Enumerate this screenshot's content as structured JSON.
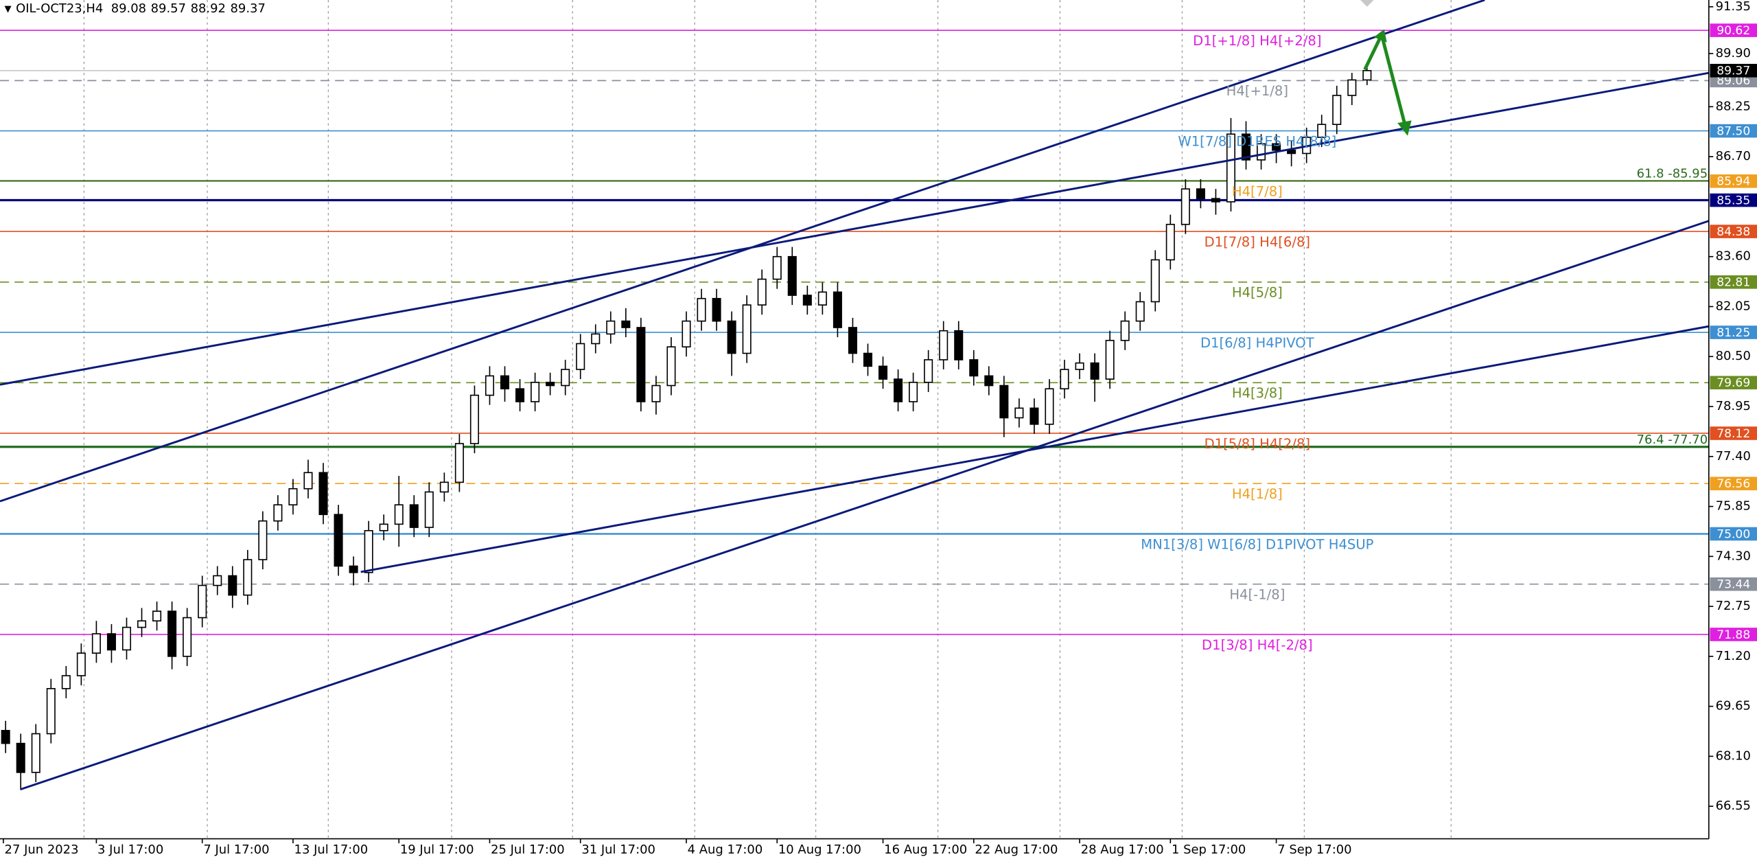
{
  "chart_data": {
    "type": "candlestick",
    "title": "OIL-OCT23,H4",
    "categories": [
      "27 Jun 2023",
      null,
      null,
      null,
      null,
      null,
      "3 Jul 17:00",
      null,
      null,
      null,
      null,
      null,
      null,
      "7 Jul 17:00",
      null,
      null,
      null,
      null,
      null,
      "13 Jul 17:00",
      null,
      null,
      null,
      null,
      null,
      null,
      "19 Jul 17:00",
      null,
      null,
      null,
      null,
      null,
      "25 Jul 17:00",
      null,
      null,
      null,
      null,
      null,
      "31 Jul 17:00",
      null,
      null,
      null,
      null,
      null,
      null,
      "4 Aug 17:00",
      null,
      null,
      null,
      null,
      null,
      "10 Aug 17:00",
      null,
      null,
      null,
      null,
      null,
      null,
      "16 Aug 17:00",
      null,
      null,
      null,
      null,
      null,
      "22 Aug 17:00",
      null,
      null,
      null,
      null,
      null,
      null,
      "28 Aug 17:00",
      null,
      null,
      null,
      null,
      null,
      "1 Sep 17:00",
      null,
      null,
      null,
      null,
      null,
      null,
      "7 Sep 17:00",
      null,
      null,
      null,
      null,
      null,
      null
    ],
    "open": [
      68.9,
      68.5,
      67.6,
      68.8,
      70.2,
      70.6,
      71.3,
      71.9,
      71.4,
      72.1,
      72.3,
      72.6,
      71.2,
      72.4,
      73.4,
      73.7,
      73.1,
      74.2,
      75.4,
      75.9,
      76.4,
      76.9,
      75.6,
      74.0,
      73.8,
      75.1,
      75.3,
      75.9,
      75.2,
      76.3,
      76.6,
      77.8,
      79.3,
      79.9,
      79.5,
      79.1,
      79.7,
      79.6,
      80.1,
      80.9,
      81.2,
      81.6,
      81.4,
      79.1,
      79.6,
      80.8,
      81.6,
      82.3,
      81.6,
      80.6,
      82.1,
      82.9,
      83.6,
      82.4,
      82.1,
      82.5,
      81.4,
      80.6,
      80.2,
      79.8,
      79.1,
      79.7,
      80.4,
      81.3,
      80.4,
      79.9,
      79.6,
      78.6,
      78.9,
      78.4,
      79.5,
      80.1,
      80.3,
      79.8,
      81.0,
      81.6,
      82.2,
      83.5,
      84.6,
      85.7,
      85.4,
      85.3,
      87.4,
      86.6,
      87.1,
      86.9,
      86.8,
      87.3,
      87.7,
      88.6,
      89.08
    ],
    "high": [
      69.2,
      68.8,
      69.1,
      70.5,
      70.9,
      71.6,
      72.3,
      72.2,
      72.4,
      72.7,
      72.9,
      72.9,
      72.7,
      73.7,
      74.0,
      74.0,
      74.5,
      75.7,
      76.2,
      76.7,
      77.3,
      77.2,
      75.9,
      74.3,
      75.4,
      75.6,
      76.8,
      76.2,
      76.6,
      76.9,
      78.1,
      79.6,
      80.2,
      80.2,
      79.8,
      80.0,
      80.0,
      80.4,
      81.2,
      81.5,
      81.9,
      82.0,
      81.7,
      79.9,
      81.1,
      81.9,
      82.6,
      82.6,
      81.9,
      82.4,
      83.2,
      83.9,
      83.9,
      82.7,
      82.8,
      82.8,
      81.7,
      80.9,
      80.5,
      80.1,
      80.0,
      80.7,
      81.6,
      81.6,
      80.7,
      80.2,
      79.9,
      79.2,
      79.2,
      79.8,
      80.4,
      80.6,
      80.6,
      81.3,
      81.9,
      82.5,
      83.8,
      84.9,
      86.0,
      86.0,
      85.7,
      87.9,
      87.8,
      87.4,
      87.4,
      87.2,
      87.6,
      88.0,
      88.9,
      89.3,
      89.57
    ],
    "low": [
      68.2,
      67.1,
      67.3,
      68.5,
      69.9,
      70.3,
      71.0,
      71.0,
      71.1,
      71.8,
      72.0,
      70.8,
      70.9,
      72.1,
      73.1,
      72.7,
      72.8,
      73.9,
      75.1,
      75.6,
      76.1,
      75.3,
      73.7,
      73.4,
      73.5,
      74.8,
      74.6,
      74.9,
      74.9,
      76.0,
      76.3,
      77.5,
      79.0,
      79.1,
      78.8,
      78.8,
      79.3,
      79.3,
      79.8,
      80.6,
      80.9,
      81.1,
      78.8,
      78.7,
      79.3,
      80.5,
      81.3,
      81.3,
      79.9,
      80.3,
      81.8,
      82.6,
      82.1,
      81.8,
      81.8,
      81.1,
      80.3,
      79.9,
      79.5,
      78.8,
      78.8,
      79.4,
      80.1,
      80.1,
      79.6,
      79.3,
      78.0,
      78.3,
      78.1,
      78.1,
      79.2,
      79.8,
      79.1,
      79.5,
      80.7,
      81.3,
      81.9,
      83.2,
      84.3,
      85.1,
      84.9,
      85.0,
      86.3,
      86.3,
      86.5,
      86.4,
      86.5,
      87.0,
      87.4,
      88.3,
      88.92
    ],
    "close": [
      68.5,
      67.6,
      68.8,
      70.2,
      70.6,
      71.3,
      71.9,
      71.4,
      72.1,
      72.3,
      72.6,
      71.2,
      72.4,
      73.4,
      73.7,
      73.1,
      74.2,
      75.4,
      75.9,
      76.4,
      76.9,
      75.6,
      74.0,
      73.8,
      75.1,
      75.3,
      75.9,
      75.2,
      76.3,
      76.6,
      77.8,
      79.3,
      79.9,
      79.5,
      79.1,
      79.7,
      79.6,
      80.1,
      80.9,
      81.2,
      81.6,
      81.4,
      79.1,
      79.6,
      80.8,
      81.6,
      82.3,
      81.6,
      80.6,
      82.1,
      82.9,
      83.6,
      82.4,
      82.1,
      82.5,
      81.4,
      80.6,
      80.2,
      79.8,
      79.1,
      79.7,
      80.4,
      81.3,
      80.4,
      79.9,
      79.6,
      78.6,
      78.9,
      78.4,
      79.5,
      80.1,
      80.3,
      79.8,
      81.0,
      81.6,
      82.2,
      83.5,
      84.6,
      85.7,
      85.4,
      85.3,
      87.4,
      86.6,
      87.1,
      86.9,
      86.8,
      87.3,
      87.7,
      88.6,
      89.08,
      89.37
    ],
    "up_color": "#ffffff",
    "down_color": "#000000",
    "ylim": [
      65.54,
      91.56
    ],
    "yticks": [
      91.35,
      {
        "value": 89.9,
        "label": "89.90"
      },
      88.25,
      {
        "value": 86.7,
        "label": "86.70"
      },
      {
        "value": 83.6,
        "label": "83.60"
      },
      82.05,
      {
        "value": 80.5,
        "label": "80.50"
      },
      78.95,
      {
        "value": 77.4,
        "label": "77.40"
      },
      75.85,
      {
        "value": 74.3,
        "label": "74.30"
      },
      72.75,
      {
        "value": 71.2,
        "label": "71.20"
      },
      69.65,
      {
        "value": 68.1,
        "label": "68.10"
      },
      66.55
    ],
    "levels": [
      {
        "value": 90.62,
        "name": "D1[+1/8] H4[+2/8]",
        "color": "#e020e0",
        "dashed": false
      },
      {
        "value": 89.06,
        "name": "H4[+1/8]",
        "color": "#8a909c",
        "dashed": true
      },
      {
        "value": 87.5,
        "label": "87.50",
        "name": "W1[7/8] D1RES H4[8/8]",
        "color": "#3d8fd1",
        "dashed": false
      },
      {
        "value": 85.94,
        "name": "H4[7/8]",
        "color": "#f0a020",
        "dashed": false
      },
      {
        "value": 85.35,
        "color": "#00007f",
        "dashed": false
      },
      {
        "value": 84.38,
        "name": "D1[7/8] H4[6/8]",
        "color": "#e05020",
        "dashed": false
      },
      {
        "value": 82.81,
        "name": "H4[5/8]",
        "color": "#6b8e23",
        "dashed": true
      },
      {
        "value": 81.25,
        "name": "D1[6/8] H4PIVOT",
        "color": "#3d8fd1",
        "dashed": false
      },
      {
        "value": 79.69,
        "name": "H4[3/8]",
        "color": "#6b8e23",
        "dashed": true
      },
      {
        "value": 78.12,
        "name": "D1[5/8] H4[2/8]",
        "color": "#e05020",
        "dashed": false
      },
      {
        "value": 76.56,
        "name": "H4[1/8]",
        "color": "#f0a020",
        "dashed": true
      },
      {
        "value": 75.0,
        "label": "75.00",
        "name": "MN1[3/8] W1[6/8] D1PIVOT H4SUP",
        "color": "#3d8fd1",
        "dashed": false
      },
      {
        "value": 73.44,
        "name": "H4[-1/8]",
        "color": "#8a909c",
        "dashed": true
      },
      {
        "value": 71.88,
        "name": "D1[3/8] H4[-2/8]",
        "color": "#e020e0",
        "dashed": false
      }
    ],
    "fib_levels": [
      {
        "value": 85.95,
        "name": "61.8 -85.95",
        "color": "#2e6b1e"
      },
      {
        "value": 77.7,
        "name": "76.4 -77.70",
        "color": "#1f6b1f"
      }
    ]
  }
}
